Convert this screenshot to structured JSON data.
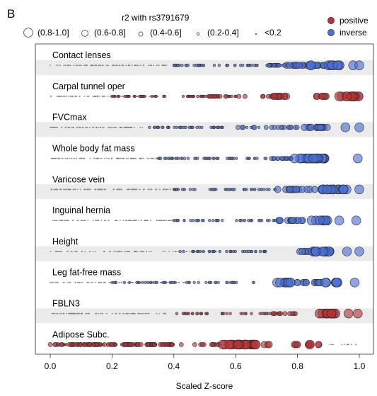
{
  "panel_label": "B",
  "size_legend": {
    "title": "r2 with rs3791679",
    "bins": [
      "(0.8-1.0]",
      "(0.6-0.8]",
      "(0.4-0.6]",
      "(0.2-0.4]",
      "<0.2"
    ]
  },
  "color_legend": [
    {
      "label": "positive",
      "color": "#b83236"
    },
    {
      "label": "inverse",
      "color": "#4a6fd6"
    }
  ],
  "chart_data": {
    "type": "scatter",
    "title": "",
    "xlabel": "Scaled Z-score",
    "ylabel": "",
    "xlim": [
      -0.05,
      1.05
    ],
    "xticks": [
      "0.0",
      "0.2",
      "0.4",
      "0.6",
      "0.8",
      "1.0"
    ],
    "grid": false,
    "row_shading": "alternating",
    "marker_size_encodes": "r2 with rs3791679",
    "marker_color_encodes": "direction of effect",
    "rows": [
      {
        "label": "Contact lenses",
        "direction": "inverse",
        "clusters": [
          {
            "range": [
              0.0,
              0.4
            ],
            "r2": 0.05,
            "n": 95
          },
          {
            "range": [
              0.4,
              0.75
            ],
            "r2": 0.25,
            "n": 55
          },
          {
            "range": [
              0.68,
              0.82
            ],
            "r2": 0.45,
            "n": 22
          },
          {
            "range": [
              0.76,
              0.95
            ],
            "r2": 0.75,
            "n": 30
          },
          {
            "range": [
              0.84,
              0.94
            ],
            "r2": 0.9,
            "n": 9
          }
        ],
        "points": [
          {
            "x": 0.98,
            "r2": 0.92
          },
          {
            "x": 1.0,
            "r2": 0.95
          }
        ]
      },
      {
        "label": "Carpal tunnel oper",
        "direction": "positive",
        "clusters": [
          {
            "range": [
              0.0,
              0.35
            ],
            "r2": 0.05,
            "n": 95
          },
          {
            "range": [
              0.2,
              0.62
            ],
            "r2": 0.25,
            "n": 55
          },
          {
            "range": [
              0.5,
              0.76
            ],
            "r2": 0.45,
            "n": 22
          },
          {
            "range": [
              0.72,
              0.8
            ],
            "r2": 0.65,
            "n": 10
          },
          {
            "range": [
              0.86,
              0.9
            ],
            "r2": 0.8,
            "n": 7
          },
          {
            "range": [
              0.93,
              1.0
            ],
            "r2": 0.88,
            "n": 14
          }
        ],
        "points": []
      },
      {
        "label": "FVCmax",
        "direction": "inverse",
        "clusters": [
          {
            "range": [
              0.0,
              0.3
            ],
            "r2": 0.05,
            "n": 80
          },
          {
            "range": [
              0.3,
              0.7
            ],
            "r2": 0.25,
            "n": 40
          },
          {
            "range": [
              0.6,
              0.8
            ],
            "r2": 0.5,
            "n": 18
          },
          {
            "range": [
              0.82,
              0.9
            ],
            "r2": 0.8,
            "n": 16
          }
        ],
        "points": [
          {
            "x": 0.955,
            "r2": 0.92
          },
          {
            "x": 1.0,
            "r2": 0.95
          }
        ]
      },
      {
        "label": "Whole body fat mass",
        "direction": "inverse",
        "clusters": [
          {
            "range": [
              0.0,
              0.35
            ],
            "r2": 0.05,
            "n": 95
          },
          {
            "range": [
              0.35,
              0.7
            ],
            "r2": 0.3,
            "n": 50
          },
          {
            "range": [
              0.7,
              0.79
            ],
            "r2": 0.55,
            "n": 14
          },
          {
            "range": [
              0.79,
              0.89
            ],
            "r2": 0.88,
            "n": 20
          }
        ],
        "points": [
          {
            "x": 0.995,
            "r2": 0.95
          }
        ]
      },
      {
        "label": "Varicose vein",
        "direction": "inverse",
        "clusters": [
          {
            "range": [
              0.0,
              0.4
            ],
            "r2": 0.05,
            "n": 95
          },
          {
            "range": [
              0.4,
              0.74
            ],
            "r2": 0.35,
            "n": 45
          },
          {
            "range": [
              0.73,
              0.82
            ],
            "r2": 0.8,
            "n": 14
          },
          {
            "range": [
              0.83,
              0.86
            ],
            "r2": 0.7,
            "n": 3
          },
          {
            "range": [
              0.88,
              0.96
            ],
            "r2": 0.82,
            "n": 18
          }
        ],
        "points": [
          {
            "x": 1.0,
            "r2": 0.92
          }
        ]
      },
      {
        "label": "Inguinal hernia",
        "direction": "inverse",
        "clusters": [
          {
            "range": [
              0.0,
              0.42
            ],
            "r2": 0.05,
            "n": 90
          },
          {
            "range": [
              0.4,
              0.74
            ],
            "r2": 0.35,
            "n": 40
          },
          {
            "range": [
              0.74,
              0.82
            ],
            "r2": 0.8,
            "n": 14
          },
          {
            "range": [
              0.84,
              0.9
            ],
            "r2": 0.85,
            "n": 12
          }
        ],
        "points": [
          {
            "x": 0.935,
            "r2": 0.92
          },
          {
            "x": 0.99,
            "r2": 0.92
          }
        ]
      },
      {
        "label": "Height",
        "direction": "inverse",
        "clusters": [
          {
            "range": [
              0.0,
              0.55
            ],
            "r2": 0.05,
            "n": 90
          },
          {
            "range": [
              0.4,
              0.7
            ],
            "r2": 0.3,
            "n": 35
          },
          {
            "range": [
              0.8,
              0.84
            ],
            "r2": 0.7,
            "n": 6
          },
          {
            "range": [
              0.85,
              0.91
            ],
            "r2": 0.88,
            "n": 18
          }
        ],
        "points": [
          {
            "x": 0.96,
            "r2": 0.92
          },
          {
            "x": 1.0,
            "r2": 0.92
          }
        ]
      },
      {
        "label": "Leg fat-free mass",
        "direction": "inverse",
        "clusters": [
          {
            "range": [
              0.0,
              0.45
            ],
            "r2": 0.05,
            "n": 85
          },
          {
            "range": [
              0.2,
              0.62
            ],
            "r2": 0.25,
            "n": 40
          },
          {
            "range": [
              0.58,
              0.66
            ],
            "r2": 0.4,
            "n": 6
          },
          {
            "range": [
              0.73,
              0.78
            ],
            "r2": 0.82,
            "n": 10
          },
          {
            "range": [
              0.79,
              0.88
            ],
            "r2": 0.8,
            "n": 14
          },
          {
            "range": [
              0.89,
              0.93
            ],
            "r2": 0.85,
            "n": 6
          }
        ],
        "points": [
          {
            "x": 0.985,
            "r2": 0.9
          }
        ]
      },
      {
        "label": "FBLN3",
        "direction": "positive",
        "clusters": [
          {
            "range": [
              0.0,
              0.38
            ],
            "r2": 0.05,
            "n": 85
          },
          {
            "range": [
              0.38,
              0.75
            ],
            "r2": 0.3,
            "n": 40
          },
          {
            "range": [
              0.72,
              0.81
            ],
            "r2": 0.6,
            "n": 10
          },
          {
            "range": [
              0.86,
              0.93
            ],
            "r2": 0.85,
            "n": 10
          }
        ],
        "points": [
          {
            "x": 0.965,
            "r2": 0.9
          },
          {
            "x": 0.995,
            "r2": 0.9
          }
        ]
      },
      {
        "label": "Adipose Subc.",
        "direction": "positive",
        "clusters": [
          {
            "range": [
              0.0,
              0.4
            ],
            "r2": 0.45,
            "n": 90
          },
          {
            "range": [
              0.0,
              0.3
            ],
            "r2": 0.25,
            "n": 30
          },
          {
            "range": [
              0.35,
              0.55
            ],
            "r2": 0.5,
            "n": 15
          },
          {
            "range": [
              0.55,
              0.67
            ],
            "r2": 0.85,
            "n": 20
          },
          {
            "range": [
              0.69,
              0.72
            ],
            "r2": 0.8,
            "n": 3
          },
          {
            "range": [
              0.79,
              0.88
            ],
            "r2": 0.7,
            "n": 10
          },
          {
            "range": [
              0.89,
              0.99
            ],
            "r2": 0.05,
            "n": 12
          }
        ],
        "points": [
          {
            "x": 0.84,
            "r2": 0.92
          }
        ]
      }
    ]
  }
}
